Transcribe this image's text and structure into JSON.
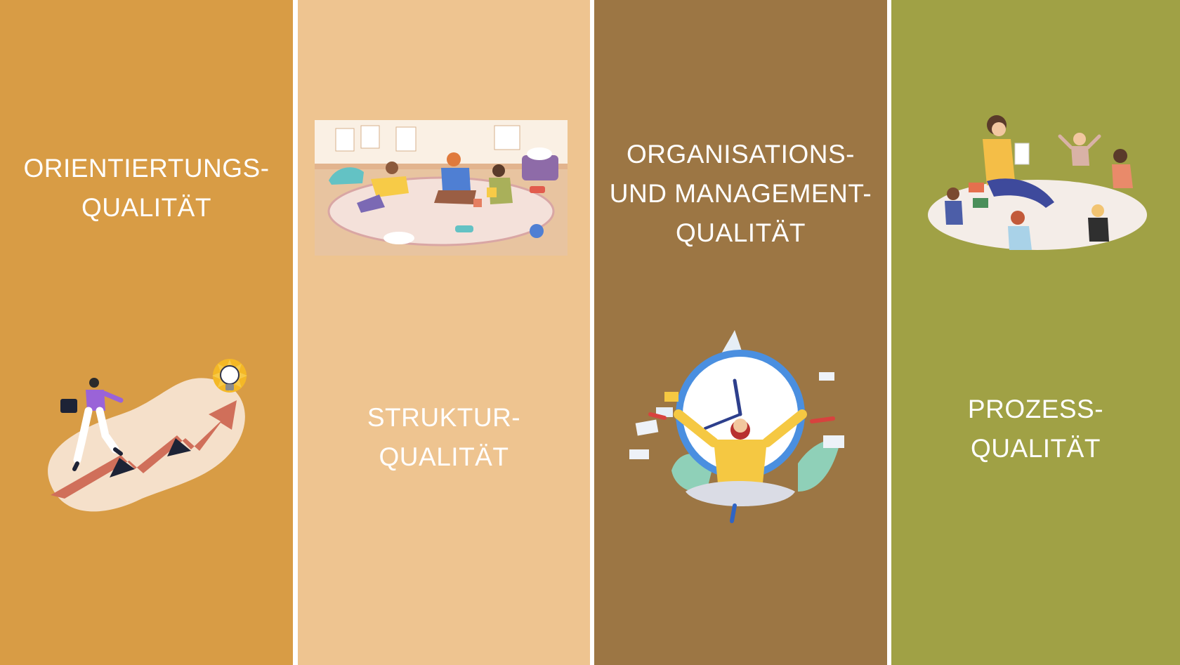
{
  "colors": {
    "panel_1": "#D89C45",
    "panel_2": "#EEC490",
    "panel_3": "#9C7644",
    "panel_4": "#A0A145",
    "divider": "#FFFFFF",
    "text": "#FFFFFF"
  },
  "panels": [
    {
      "heading": [
        "ORIENTIERTUNGS-",
        "QUALITÄT"
      ],
      "illustration": "person-climbing-arrow-to-lightbulb"
    },
    {
      "heading": [
        "STRUKTUR-",
        "QUALITÄT"
      ],
      "illustration": "children-playing-in-playroom"
    },
    {
      "heading": [
        "ORGANISATIONS-",
        "UND MANAGEMENT-",
        "QUALITÄT"
      ],
      "illustration": "multitasking-person-with-clock"
    },
    {
      "heading": [
        "PROZESS-",
        "QUALITÄT"
      ],
      "illustration": "teacher-reading-to-children-circle"
    }
  ]
}
